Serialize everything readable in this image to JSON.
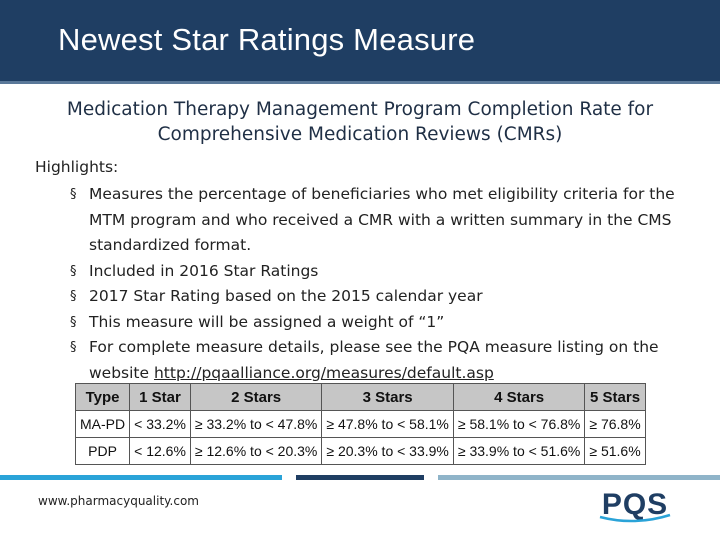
{
  "header": {
    "title": "Newest Star Ratings Measure"
  },
  "subtitle": "Medication Therapy Management Program Completion Rate for Comprehensive Medication Reviews (CMRs)",
  "highlights": {
    "label": "Highlights:",
    "items": [
      "Measures the percentage of beneficiaries who met eligibility criteria for the MTM program and who received a CMR with a written summary in the CMS standardized format.",
      "Included in 2016 Star Ratings",
      "2017 Star Rating based on the 2015 calendar year",
      "This measure will be assigned a weight of “1”"
    ],
    "last_item_text": "For complete measure details, please see the PQA measure listing on the website ",
    "last_item_link": "http://pqaalliance.org/measures/default.asp"
  },
  "table": {
    "headers": [
      "Type",
      "1 Star",
      "2 Stars",
      "3 Stars",
      "4 Stars",
      "5 Stars"
    ],
    "rows": [
      [
        "MA-PD",
        "< 33.2%",
        "≥ 33.2% to < 47.8%",
        "≥ 47.8% to < 58.1%",
        "≥ 58.1% to < 76.8%",
        "≥ 76.8%"
      ],
      [
        "PDP",
        "< 12.6%",
        "≥ 12.6% to < 20.3%",
        "≥ 20.3% to < 33.9%",
        "≥ 33.9% to < 51.6%",
        "≥ 51.6%"
      ]
    ]
  },
  "footer": {
    "url": "www.pharmacyquality.com",
    "logo_text": "PQS"
  },
  "colors": {
    "title_bar": "#1f3e63",
    "accent_light_blue": "#2aa3d8",
    "accent_navy": "#1f3e63",
    "accent_gray_blue": "#8fb4c9"
  }
}
